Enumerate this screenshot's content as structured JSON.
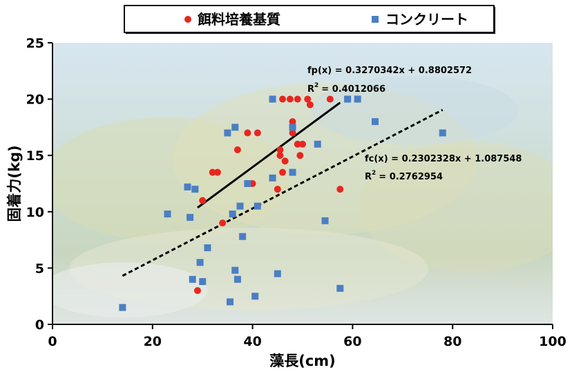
{
  "chart_data": {
    "type": "scatter",
    "title": "",
    "xlabel": "藻長(cm)",
    "ylabel": "固着力(kg)",
    "xlim": [
      0,
      100
    ],
    "ylim": [
      0,
      25
    ],
    "x_ticks": [
      "0",
      "20",
      "40",
      "60",
      "80",
      "100"
    ],
    "y_ticks": [
      "0",
      "5",
      "10",
      "15",
      "20",
      "25"
    ],
    "grid": false,
    "legend_position": "top-center",
    "series": [
      {
        "name": "餌料培養基質",
        "color": "#e8261f",
        "marker": "circle",
        "points": [
          [
            29,
            3
          ],
          [
            30,
            11
          ],
          [
            32,
            13.5
          ],
          [
            33,
            13.5
          ],
          [
            34,
            9
          ],
          [
            37,
            15.5
          ],
          [
            39,
            17
          ],
          [
            40,
            12.5
          ],
          [
            41,
            17
          ],
          [
            45,
            12
          ],
          [
            45.5,
            15.5
          ],
          [
            45.5,
            15
          ],
          [
            46,
            13.5
          ],
          [
            46,
            20
          ],
          [
            46.5,
            14.5
          ],
          [
            47.5,
            20
          ],
          [
            48,
            18
          ],
          [
            48,
            17
          ],
          [
            49,
            16
          ],
          [
            49,
            20
          ],
          [
            49.5,
            15
          ],
          [
            50,
            16
          ],
          [
            51,
            20
          ],
          [
            51.5,
            19.5
          ],
          [
            55.5,
            20
          ],
          [
            57.5,
            12
          ]
        ]
      },
      {
        "name": "コンクリート",
        "color": "#4a7fc4",
        "marker": "square",
        "points": [
          [
            14,
            1.5
          ],
          [
            23,
            9.8
          ],
          [
            27,
            12.2
          ],
          [
            27.5,
            9.5
          ],
          [
            28,
            4
          ],
          [
            28.5,
            12
          ],
          [
            29.5,
            5.5
          ],
          [
            30,
            3.8
          ],
          [
            31,
            6.8
          ],
          [
            35,
            17
          ],
          [
            35.5,
            2
          ],
          [
            36,
            9.8
          ],
          [
            36.5,
            4.8
          ],
          [
            36.5,
            17.5
          ],
          [
            37,
            4
          ],
          [
            37.5,
            10.5
          ],
          [
            38,
            7.8
          ],
          [
            39,
            12.5
          ],
          [
            40.5,
            2.5
          ],
          [
            41,
            10.5
          ],
          [
            44,
            20
          ],
          [
            44,
            13
          ],
          [
            45,
            4.5
          ],
          [
            48,
            17.5
          ],
          [
            48,
            13.5
          ],
          [
            53,
            16
          ],
          [
            54.5,
            9.2
          ],
          [
            57.5,
            3.2
          ],
          [
            59,
            20
          ],
          [
            61,
            20
          ],
          [
            64.5,
            18
          ],
          [
            78,
            17
          ]
        ]
      }
    ],
    "trendlines": [
      {
        "series": "餌料培養基質",
        "equation": "fp(x) = 0.3270342x + 0.8802572",
        "r2_label": "R",
        "r2_value": "= 0.4012066",
        "slope": 0.3270342,
        "intercept": 0.8802572,
        "x_range": [
          29,
          57.5
        ],
        "style": "solid"
      },
      {
        "series": "コンクリート",
        "equation": "fc(x) = 0.2302328x + 1.087548",
        "r2_label": "R",
        "r2_value": "= 0.2762954",
        "slope": 0.2302328,
        "intercept": 1.087548,
        "x_range": [
          14,
          78
        ],
        "style": "dashed"
      }
    ]
  }
}
